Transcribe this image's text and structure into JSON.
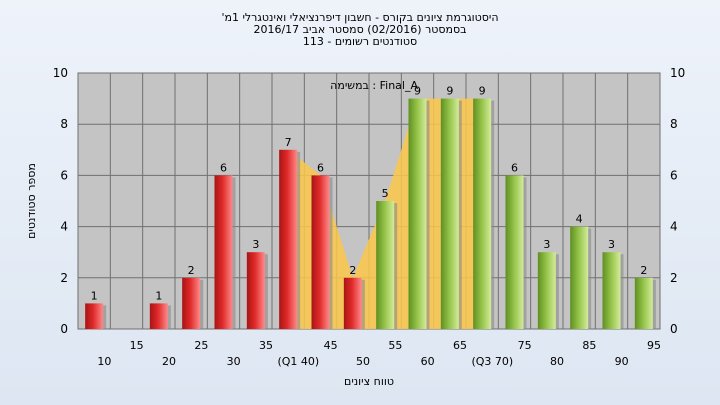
{
  "chart_data": {
    "type": "bar",
    "title_lines": [
      "'היסטוגרמת ציונים בקורס - חשבון דיפרנציאלי ואינטגרלי 1מ",
      "בסמסטר  (02/2016)  סמסטר אביב 2016/17",
      "סטודנטים רשומים - 113"
    ],
    "xlabel": "טווח ציונים",
    "ylabel": "מספר סטודנטים",
    "ylim": [
      0,
      10
    ],
    "y_ticks": [
      "0",
      "2",
      "4",
      "6",
      "8",
      "10"
    ],
    "x_ticks_top": [
      "15",
      "25",
      "35",
      "45",
      "55",
      "65",
      "75",
      "85",
      "95"
    ],
    "x_ticks_bottom": [
      "10",
      "20",
      "30",
      "(Q1 40)",
      "50",
      "60",
      "(Q3 70)",
      "80",
      "90"
    ],
    "annotation": "במשימה : Final_A",
    "grid": true,
    "colors": {
      "fail_bar": "#e02a2a",
      "pass_bar": "#92c146",
      "band_fill": "#fcc84a",
      "plot_bg": "#c4c4c4"
    },
    "categories": [
      "10",
      "15",
      "20",
      "25",
      "30",
      "35",
      "40",
      "45",
      "50",
      "55",
      "60",
      "65",
      "70",
      "75",
      "80",
      "85",
      "90",
      "95"
    ],
    "values": [
      1,
      0,
      1,
      2,
      6,
      3,
      7,
      6,
      2,
      5,
      9,
      9,
      9,
      6,
      3,
      4,
      3,
      2
    ],
    "bar_group": [
      "fail",
      "fail",
      "fail",
      "fail",
      "fail",
      "fail",
      "fail",
      "fail",
      "fail",
      "pass",
      "pass",
      "pass",
      "pass",
      "pass",
      "pass",
      "pass",
      "pass",
      "pass"
    ],
    "data_labels": [
      "1",
      "",
      "1",
      "2",
      "6",
      "3",
      "7",
      "6",
      "2",
      "5",
      "9",
      "9",
      "9",
      "6",
      "3",
      "4",
      "3",
      "2"
    ]
  }
}
